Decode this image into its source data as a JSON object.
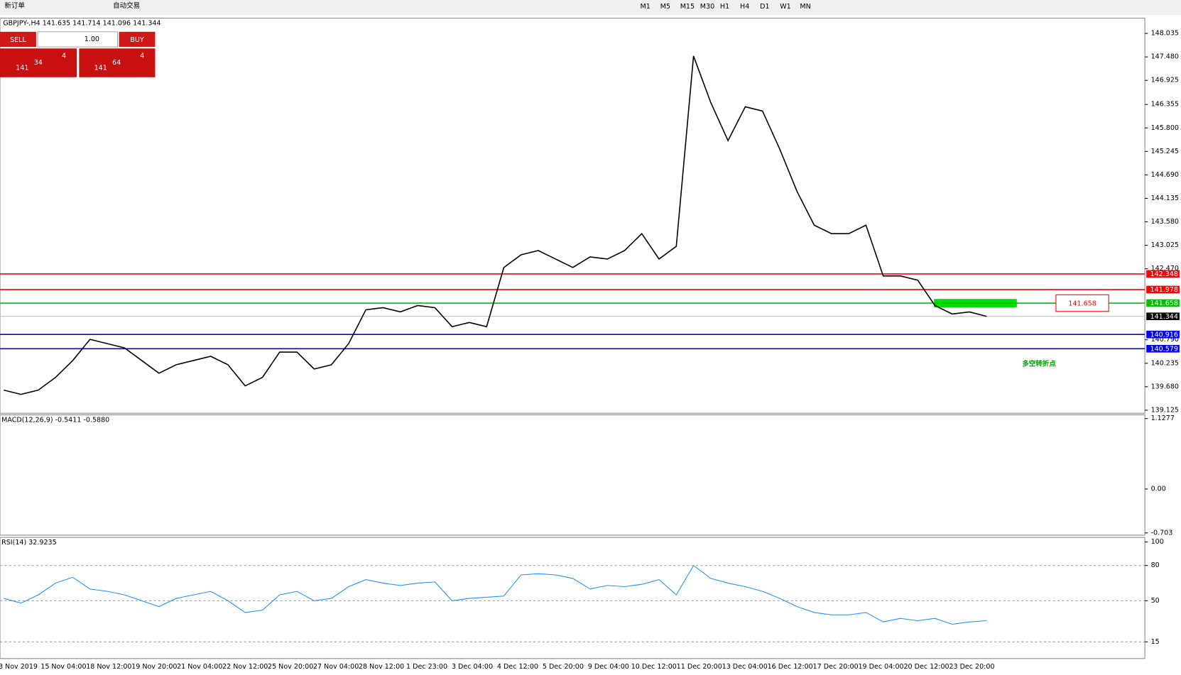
{
  "toolbar": {
    "new_order": "新订单",
    "auto_trading": "自动交易",
    "timeframes": [
      "M1",
      "M5",
      "M15",
      "M30",
      "H1",
      "H4",
      "D1",
      "W1",
      "MN"
    ]
  },
  "trade_panel": {
    "sell": "SELL",
    "lot": "1.00",
    "buy": "BUY",
    "sell_price": {
      "big": "141",
      "main": "34",
      "small": "4"
    },
    "buy_price": {
      "big": "141",
      "main": "64",
      "small": "4"
    }
  },
  "time_axis": [
    "3 Nov 2019",
    "15 Nov 04:00",
    "18 Nov 12:00",
    "19 Nov 20:00",
    "21 Nov 04:00",
    "22 Nov 12:00",
    "25 Nov 20:00",
    "27 Nov 04:00",
    "28 Nov 12:00",
    "1 Dec 23:00",
    "3 Dec 04:00",
    "4 Dec 12:00",
    "5 Dec 20:00",
    "9 Dec 04:00",
    "10 Dec 12:00",
    "11 Dec 20:00",
    "13 Dec 04:00",
    "16 Dec 12:00",
    "17 Dec 20:00",
    "19 Dec 04:00",
    "20 Dec 12:00",
    "23 Dec 20:00"
  ],
  "chart_data": [
    {
      "type": "line",
      "title": "GBPJPY-,H4 141.635 141.714 141.096 141.344",
      "color": "#000000",
      "values": [
        139.6,
        139.5,
        139.6,
        139.9,
        140.3,
        140.8,
        140.7,
        140.6,
        140.3,
        140.0,
        140.2,
        140.3,
        140.4,
        140.2,
        139.7,
        139.9,
        140.5,
        140.5,
        140.1,
        140.2,
        140.7,
        141.5,
        141.55,
        141.45,
        141.6,
        141.55,
        141.1,
        141.2,
        141.1,
        142.5,
        142.8,
        142.9,
        142.7,
        142.5,
        142.75,
        142.7,
        142.9,
        143.3,
        142.7,
        143.0,
        147.5,
        146.4,
        145.5,
        146.3,
        146.2,
        145.3,
        144.3,
        143.5,
        143.3,
        143.3,
        143.5,
        142.3,
        142.3,
        142.2,
        141.6,
        141.4,
        141.45,
        141.344
      ],
      "ylim": [
        139.07,
        148.36
      ],
      "yticks": [
        148.035,
        {
          "value": 147.48,
          "label": "147.480"
        },
        146.925,
        146.355,
        {
          "value": 145.8,
          "label": "145.800"
        },
        145.245,
        {
          "value": 144.69,
          "label": "144.690"
        },
        144.135,
        {
          "value": 143.58,
          "label": "143.580"
        },
        143.025,
        {
          "value": 142.47,
          "label": "142.470"
        },
        {
          "value": 140.79,
          "label": "140.790"
        },
        140.235,
        {
          "value": 139.68,
          "label": "139.680"
        },
        139.125
      ],
      "levels": [
        {
          "value": 142.348,
          "color": "#ff0000"
        },
        {
          "value": 141.978,
          "color": "#ff0000"
        },
        {
          "value": 141.658,
          "color": "#00c000"
        },
        {
          "value": 141.344,
          "color": "#000000"
        },
        {
          "value": 140.916,
          "color": "#0000ff"
        },
        {
          "value": 140.579,
          "color": "#0000ff"
        }
      ],
      "annotation": "多空转折点"
    },
    {
      "type": "indicator",
      "title": "MACD(12,26,9) -0.5411 -0.5880",
      "ylim": [
        -0.739,
        1.188
      ],
      "yticks": [
        1.1277,
        {
          "value": 0,
          "label": "0.00"
        },
        -0.703
      ]
    },
    {
      "type": "line",
      "title": "RSI(14) 32.9235",
      "color": "#1e90ff",
      "values": [
        52,
        48,
        55,
        65,
        70,
        60,
        58,
        55,
        50,
        45,
        52,
        55,
        58,
        50,
        40,
        42,
        55,
        58,
        50,
        52,
        62,
        68,
        65,
        63,
        65,
        66,
        50,
        52,
        53,
        54,
        72,
        73,
        72,
        69,
        60,
        63,
        62,
        64,
        68,
        55,
        80,
        69,
        65,
        62,
        58,
        52,
        45,
        40,
        38,
        38,
        40,
        32,
        35,
        33,
        35,
        30,
        32,
        33
      ],
      "ylim": [
        0.8,
        103.9
      ],
      "yticks": [
        100,
        80,
        50,
        15
      ],
      "levels": [
        80,
        50,
        15
      ]
    }
  ]
}
